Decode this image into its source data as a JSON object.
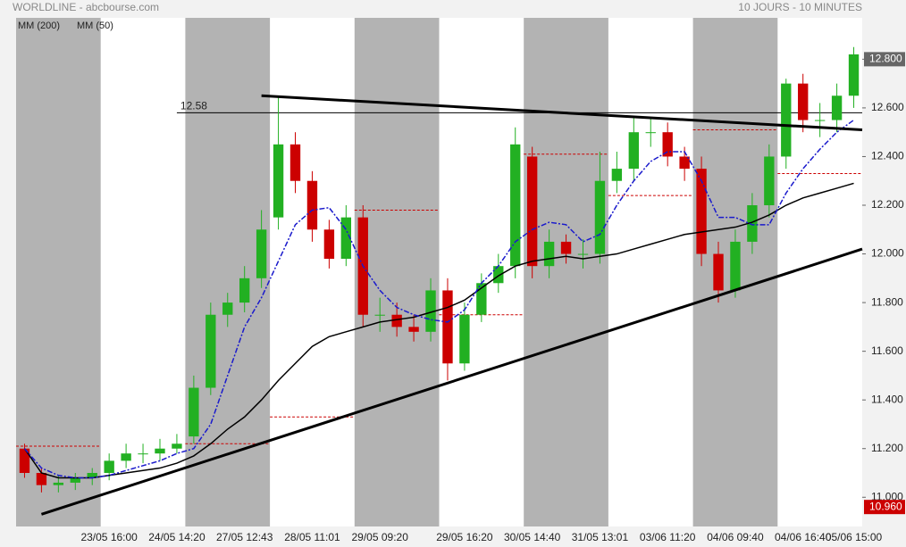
{
  "chart_data": {
    "type": "candlestick",
    "title": "WORLDLINE - abcbourse.com",
    "subtitle": "10 JOURS - 10 MINUTES",
    "categories": [
      null,
      null,
      null,
      null,
      null,
      "23/05 16:00",
      null,
      null,
      null,
      "24/05 14:20",
      null,
      null,
      null,
      "27/05 12:43",
      null,
      null,
      null,
      "28/05 11:01",
      null,
      null,
      null,
      "29/05 09:20",
      null,
      null,
      null,
      null,
      "29/05 16:20",
      null,
      null,
      null,
      "30/05 14:40",
      null,
      null,
      null,
      "31/05 13:01",
      null,
      null,
      null,
      "03/06 11:20",
      null,
      null,
      null,
      "04/06 09:40",
      null,
      null,
      null,
      "04/06 16:40",
      null,
      null,
      "05/06 15:00"
    ],
    "open": [
      11.2,
      11.1,
      11.05,
      11.06,
      11.08,
      11.1,
      11.15,
      11.18,
      11.18,
      11.2,
      11.25,
      11.45,
      11.75,
      11.8,
      11.9,
      12.15,
      12.45,
      12.3,
      12.1,
      11.98,
      12.15,
      11.75,
      11.75,
      11.7,
      11.68,
      11.85,
      11.55,
      11.75,
      11.88,
      11.95,
      12.4,
      11.95,
      12.05,
      12.0,
      12.0,
      12.3,
      12.35,
      12.5,
      12.5,
      12.4,
      12.35,
      12.0,
      11.85,
      12.05,
      12.2,
      12.4,
      12.7,
      12.55,
      12.55,
      12.65
    ],
    "high": [
      11.22,
      11.12,
      11.09,
      11.1,
      11.12,
      11.18,
      11.22,
      11.22,
      11.24,
      11.26,
      11.5,
      11.8,
      11.84,
      11.95,
      12.18,
      12.65,
      12.5,
      12.34,
      12.14,
      12.2,
      12.2,
      11.82,
      11.8,
      11.75,
      11.9,
      11.9,
      11.8,
      11.92,
      12.0,
      12.52,
      12.44,
      12.1,
      12.08,
      12.06,
      12.42,
      12.42,
      12.56,
      12.56,
      12.54,
      12.44,
      12.4,
      12.05,
      12.1,
      12.25,
      12.45,
      12.72,
      12.74,
      12.62,
      12.7,
      12.85
    ],
    "low": [
      11.08,
      11.02,
      11.02,
      11.03,
      11.05,
      11.07,
      11.12,
      11.14,
      11.15,
      11.18,
      11.22,
      11.42,
      11.7,
      11.76,
      11.86,
      12.1,
      12.25,
      12.05,
      11.94,
      11.95,
      11.7,
      11.68,
      11.66,
      11.64,
      11.64,
      11.48,
      11.52,
      11.72,
      11.84,
      11.9,
      11.9,
      11.9,
      11.96,
      11.94,
      11.96,
      12.25,
      12.3,
      12.44,
      12.36,
      12.3,
      11.95,
      11.8,
      11.82,
      12.0,
      12.15,
      12.35,
      12.5,
      12.48,
      12.5,
      12.6
    ],
    "close": [
      11.1,
      11.05,
      11.06,
      11.08,
      11.1,
      11.15,
      11.18,
      11.18,
      11.2,
      11.22,
      11.45,
      11.75,
      11.8,
      11.9,
      12.1,
      12.45,
      12.3,
      12.1,
      11.98,
      12.15,
      11.75,
      11.75,
      11.7,
      11.68,
      11.85,
      11.55,
      11.75,
      11.88,
      11.95,
      12.45,
      11.95,
      12.05,
      12.0,
      12.0,
      12.3,
      12.35,
      12.5,
      12.5,
      12.4,
      12.35,
      12.0,
      11.85,
      12.05,
      12.2,
      12.4,
      12.7,
      12.55,
      12.55,
      12.65,
      12.82
    ],
    "up_color": "#22b022",
    "down_color": "#cc0000",
    "series": [
      {
        "name": "MM (200)",
        "color": "#000000",
        "dash": false,
        "values": [
          11.2,
          11.1,
          11.08,
          11.08,
          11.08,
          11.09,
          11.1,
          11.11,
          11.12,
          11.14,
          11.17,
          11.22,
          11.28,
          11.33,
          11.4,
          11.48,
          11.55,
          11.62,
          11.66,
          11.68,
          11.7,
          11.72,
          11.73,
          11.74,
          11.76,
          11.78,
          11.81,
          11.86,
          11.91,
          11.95,
          11.97,
          11.98,
          11.99,
          11.98,
          11.99,
          12.0,
          12.02,
          12.04,
          12.06,
          12.08,
          12.09,
          12.1,
          12.11,
          12.13,
          12.16,
          12.2,
          12.23,
          12.25,
          12.27,
          12.29
        ]
      },
      {
        "name": "MM (50)",
        "color": "#1a1acc",
        "dash": true,
        "values": [
          11.2,
          11.12,
          11.09,
          11.08,
          11.08,
          11.09,
          11.11,
          11.13,
          11.15,
          11.18,
          11.2,
          11.3,
          11.5,
          11.7,
          11.82,
          11.97,
          12.12,
          12.18,
          12.19,
          12.1,
          11.95,
          11.85,
          11.78,
          11.75,
          11.73,
          11.72,
          11.77,
          11.88,
          11.95,
          12.05,
          12.1,
          12.13,
          12.12,
          12.05,
          12.08,
          12.2,
          12.3,
          12.38,
          12.42,
          12.42,
          12.3,
          12.15,
          12.15,
          12.12,
          12.12,
          12.25,
          12.35,
          12.43,
          12.5,
          12.55
        ]
      }
    ],
    "candles_per_day": 5,
    "prev_close_levels": [
      11.21,
      11.22,
      11.33,
      12.18,
      11.75,
      12.41,
      12.24,
      12.51,
      12.33
    ],
    "prev_close_color": "#cc0000",
    "trendlines": [
      {
        "x": [
          14,
          49.5
        ],
        "values": [
          12.65,
          12.51
        ]
      },
      {
        "x": [
          1,
          49.5
        ],
        "values": [
          10.93,
          12.02
        ]
      }
    ],
    "hline": {
      "value": 12.58,
      "label": "12.58",
      "from": 9
    },
    "last_labels": [
      {
        "value": 12.8,
        "label": "12.800",
        "color": "#666666"
      },
      {
        "value": 10.96,
        "label": "10.960",
        "color": "#cc0000"
      }
    ],
    "ylim": [
      10.88,
      12.97
    ],
    "yticks": [
      {
        "value": 11.0,
        "label": "11.000"
      },
      {
        "value": 11.2,
        "label": "11.200"
      },
      {
        "value": 11.4,
        "label": "11.400"
      },
      {
        "value": 11.6,
        "label": "11.600"
      },
      {
        "value": 11.8,
        "label": "11.800"
      },
      {
        "value": 12.0,
        "label": "12.000"
      },
      {
        "value": 12.2,
        "label": "12.200"
      },
      {
        "value": 12.4,
        "label": "12.400"
      },
      {
        "value": 12.6,
        "label": "12.600"
      },
      {
        "value": 12.8,
        "label": "12.800"
      }
    ]
  }
}
